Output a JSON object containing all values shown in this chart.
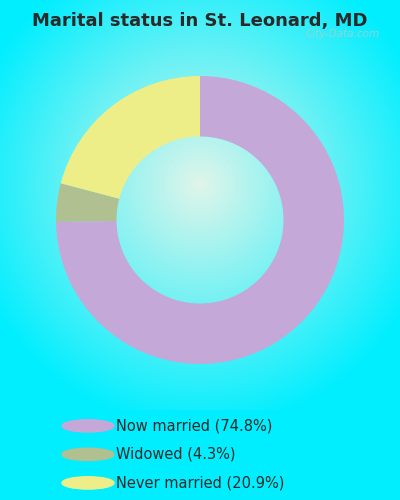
{
  "title": "Marital status in St. Leonard, MD",
  "title_color": "#2a2a2a",
  "title_fontsize": 13.0,
  "background_cyan": "#00eeff",
  "slices": [
    74.8,
    4.3,
    20.9
  ],
  "slice_colors": [
    "#c4a8d8",
    "#b0c090",
    "#eeee88"
  ],
  "labels": [
    "Now married (74.8%)",
    "Widowed (4.3%)",
    "Never married (20.9%)"
  ],
  "legend_dot_colors": [
    "#c4a8d8",
    "#b0c090",
    "#eeee88"
  ],
  "legend_text_color": "#2a2a2a",
  "legend_fontsize": 10.5,
  "watermark": "City-Data.com",
  "watermark_color": "#aacccc",
  "donut_width": 0.42,
  "startangle": 90,
  "figsize": [
    4.0,
    5.0
  ],
  "dpi": 100
}
